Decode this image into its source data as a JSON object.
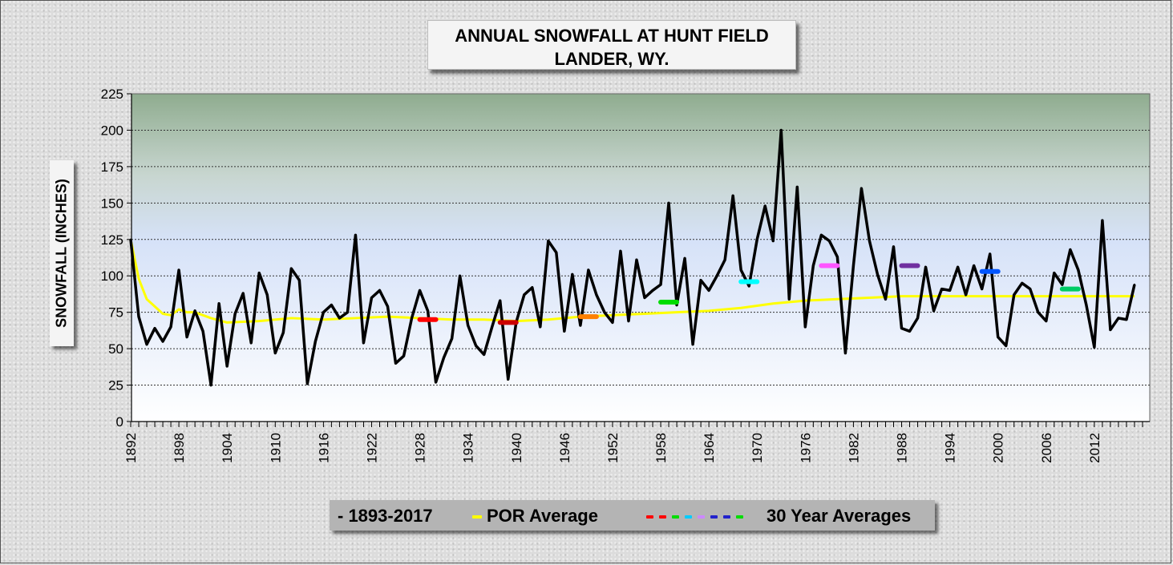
{
  "title": {
    "line1": "ANNUAL SNOWFALL AT HUNT FIELD",
    "line2": "LANDER, WY."
  },
  "legend": {
    "series_label": "- 1893-2017",
    "por_label": "POR Average",
    "thirty_label": "30 Year Averages",
    "thirty_dash_colors": [
      "#ff0000",
      "#ff0000",
      "#00dd00",
      "#00ccff",
      "#cc88ff",
      "#2222cc",
      "#2222cc",
      "#00dd00"
    ]
  },
  "colors": {
    "series": "#000000",
    "por": "#ffff00"
  },
  "chart_data": {
    "type": "line",
    "title": "ANNUAL SNOWFALL AT HUNT FIELD LANDER, WY.",
    "ylabel": "SNOWFALL (INCHES)",
    "xlabel": "",
    "ylim": [
      0,
      225
    ],
    "xlim": [
      1892,
      2018
    ],
    "yticks": [
      0,
      25,
      50,
      75,
      100,
      125,
      150,
      175,
      200,
      225
    ],
    "xticks": [
      1892,
      1898,
      1904,
      1910,
      1916,
      1922,
      1928,
      1934,
      1940,
      1946,
      1952,
      1958,
      1964,
      1970,
      1976,
      1982,
      1988,
      1994,
      2000,
      2006,
      2012
    ],
    "grid": true,
    "legend_position": "bottom",
    "series": [
      {
        "name": "1893-2017",
        "color": "#000000",
        "x": [
          1892,
          1893,
          1894,
          1895,
          1896,
          1897,
          1898,
          1899,
          1900,
          1901,
          1902,
          1903,
          1904,
          1905,
          1906,
          1907,
          1908,
          1909,
          1910,
          1911,
          1912,
          1913,
          1914,
          1915,
          1916,
          1917,
          1918,
          1919,
          1920,
          1921,
          1922,
          1923,
          1924,
          1925,
          1926,
          1927,
          1928,
          1929,
          1930,
          1931,
          1932,
          1933,
          1934,
          1935,
          1936,
          1937,
          1938,
          1939,
          1940,
          1941,
          1942,
          1943,
          1944,
          1945,
          1946,
          1947,
          1948,
          1949,
          1950,
          1951,
          1952,
          1953,
          1954,
          1955,
          1956,
          1957,
          1958,
          1959,
          1960,
          1961,
          1962,
          1963,
          1964,
          1965,
          1966,
          1967,
          1968,
          1969,
          1970,
          1971,
          1972,
          1973,
          1974,
          1975,
          1976,
          1977,
          1978,
          1979,
          1980,
          1981,
          1982,
          1983,
          1984,
          1985,
          1986,
          1987,
          1988,
          1989,
          1990,
          1991,
          1992,
          1993,
          1994,
          1995,
          1996,
          1997,
          1998,
          1999,
          2000,
          2001,
          2002,
          2003,
          2004,
          2005,
          2006,
          2007,
          2008,
          2009,
          2010,
          2011,
          2012,
          2013,
          2014,
          2015,
          2016,
          2017
        ],
        "values": [
          125,
          72,
          53,
          64,
          55,
          65,
          104,
          58,
          76,
          62,
          25,
          81,
          38,
          74,
          88,
          54,
          102,
          87,
          47,
          61,
          105,
          97,
          26,
          55,
          75,
          80,
          71,
          75,
          128,
          54,
          85,
          90,
          79,
          40,
          45,
          71,
          90,
          76,
          27,
          44,
          57,
          100,
          66,
          52,
          46,
          65,
          83,
          29,
          68,
          87,
          92,
          65,
          124,
          116,
          62,
          101,
          66,
          104,
          87,
          75,
          68,
          117,
          69,
          111,
          85,
          90,
          94,
          150,
          80,
          112,
          53,
          97,
          90,
          100,
          111,
          155,
          104,
          93,
          125,
          148,
          124,
          200,
          84,
          161,
          65,
          107,
          128,
          124,
          113,
          47,
          107,
          160,
          124,
          101,
          84,
          120,
          64,
          62,
          71,
          106,
          76,
          91,
          90,
          106,
          87,
          107,
          91,
          115,
          58,
          52,
          87,
          95,
          91,
          75,
          69,
          102,
          94,
          118,
          104,
          80,
          51,
          138,
          63,
          71,
          70,
          94
        ]
      },
      {
        "name": "POR Average",
        "color": "#ffff00",
        "x": [
          1892,
          1893,
          1894,
          1895,
          1896,
          1897,
          1898,
          1899,
          1900,
          1902,
          1904,
          1908,
          1912,
          1916,
          1920,
          1924,
          1928,
          1932,
          1936,
          1940,
          1944,
          1948,
          1952,
          1956,
          1960,
          1964,
          1968,
          1972,
          1976,
          1980,
          1984,
          1988,
          1992,
          1996,
          2000,
          2004,
          2008,
          2012,
          2017
        ],
        "values": [
          125,
          98,
          84,
          79,
          74,
          73,
          77,
          75,
          75,
          71,
          68,
          69,
          71,
          70,
          71,
          72,
          71,
          70,
          70,
          69,
          70,
          72,
          73,
          74,
          75,
          76,
          78,
          81,
          83,
          84,
          85,
          86,
          86,
          86,
          86,
          86,
          86,
          86,
          86
        ]
      }
    ],
    "thirty_year_averages": [
      {
        "x": [
          1928,
          1930
        ],
        "value": 70,
        "color": "#ff0000"
      },
      {
        "x": [
          1938,
          1940
        ],
        "value": 68,
        "color": "#cc0000"
      },
      {
        "x": [
          1948,
          1950
        ],
        "value": 72,
        "color": "#ff8000"
      },
      {
        "x": [
          1958,
          1960
        ],
        "value": 82,
        "color": "#00dd00"
      },
      {
        "x": [
          1968,
          1970
        ],
        "value": 96,
        "color": "#00ffff"
      },
      {
        "x": [
          1978,
          1980
        ],
        "value": 107,
        "color": "#ff55ff"
      },
      {
        "x": [
          1988,
          1990
        ],
        "value": 107,
        "color": "#7030a0"
      },
      {
        "x": [
          1998,
          2000
        ],
        "value": 103,
        "color": "#0055ff"
      },
      {
        "x": [
          2008,
          2010
        ],
        "value": 91,
        "color": "#00cc66"
      }
    ]
  }
}
